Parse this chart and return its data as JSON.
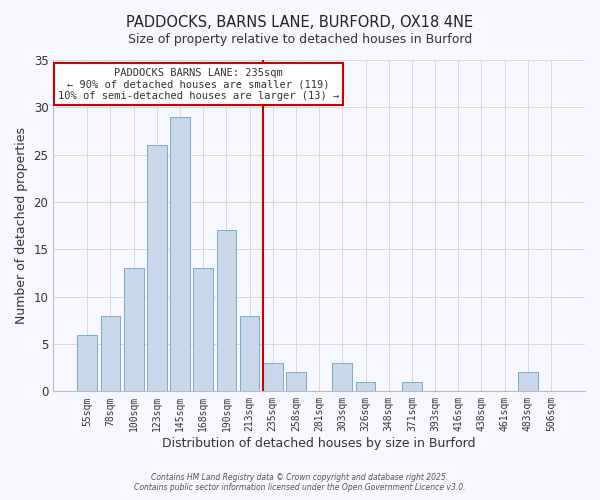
{
  "title": "PADDOCKS, BARNS LANE, BURFORD, OX18 4NE",
  "subtitle": "Size of property relative to detached houses in Burford",
  "xlabel": "Distribution of detached houses by size in Burford",
  "ylabel": "Number of detached properties",
  "bar_labels": [
    "55sqm",
    "78sqm",
    "100sqm",
    "123sqm",
    "145sqm",
    "168sqm",
    "190sqm",
    "213sqm",
    "235sqm",
    "258sqm",
    "281sqm",
    "303sqm",
    "326sqm",
    "348sqm",
    "371sqm",
    "393sqm",
    "416sqm",
    "438sqm",
    "461sqm",
    "483sqm",
    "506sqm"
  ],
  "bar_values": [
    6,
    8,
    13,
    26,
    29,
    13,
    17,
    8,
    3,
    2,
    0,
    3,
    1,
    0,
    1,
    0,
    0,
    0,
    0,
    2,
    0
  ],
  "bar_color": "#c8d8ea",
  "bar_edgecolor": "#7daac5",
  "vline_index": 8,
  "vline_color": "#cc0000",
  "annotation_title": "PADDOCKS BARNS LANE: 235sqm",
  "annotation_line1": "← 90% of detached houses are smaller (119)",
  "annotation_line2": "10% of semi-detached houses are larger (13) →",
  "annotation_box_edgecolor": "#cc0000",
  "annotation_box_facecolor": "#ffffff",
  "ylim": [
    0,
    35
  ],
  "yticks": [
    0,
    5,
    10,
    15,
    20,
    25,
    30,
    35
  ],
  "footer1": "Contains HM Land Registry data © Crown copyright and database right 2025.",
  "footer2": "Contains public sector information licensed under the Open Government Licence v3.0.",
  "background_color": "#f7f7ff",
  "grid_color": "#d8d8d8"
}
